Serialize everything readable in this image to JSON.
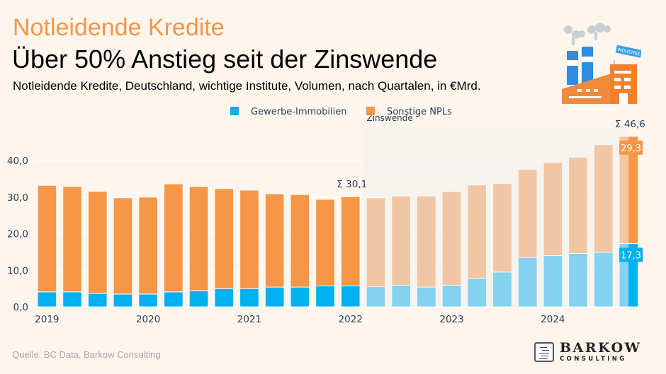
{
  "header": {
    "kicker": "Notleidende Kredite",
    "headline": "Über 50% Anstieg seit der Zinswende",
    "subtitle": "Notleidende Kredite, Deutschland, wichtige Institute, Volumen, nach Quartalen, in €Mrd."
  },
  "illustration": {
    "icon": "factory-icon",
    "sign_text": "INDUSTRIE"
  },
  "footer": {
    "source": "Quelle: BC Data, Barkow Consulting",
    "logo_main": "BARKOW",
    "logo_sub": "CONSULTING"
  },
  "colors": {
    "background": "#fef5ec",
    "gewerbe": "#00b0f0",
    "sonstige": "#f79646",
    "shade": "#efefef",
    "kicker": "#f79646",
    "axis_text": "#2a3f5f"
  },
  "chart_data": {
    "type": "bar",
    "stacked": true,
    "title": "Notleidende Kredite, Deutschland, wichtige Institute, Volumen, nach Quartalen, in €Mrd.",
    "xlabel": "",
    "ylabel": "",
    "ylim": [
      0,
      48
    ],
    "yticks": [
      0,
      10,
      20,
      30,
      40
    ],
    "ytick_labels": [
      "0,0",
      "10,0",
      "20,0",
      "30,0",
      "40,0"
    ],
    "grid": true,
    "legend_position": "top-center",
    "categories": [
      "2019 Q1",
      "2019 Q2",
      "2019 Q3",
      "2019 Q4",
      "2020 Q1",
      "2020 Q2",
      "2020 Q3",
      "2020 Q4",
      "2021 Q1",
      "2021 Q2",
      "2021 Q3",
      "2021 Q4",
      "2022 Q1",
      "2022 Q2",
      "2022 Q3",
      "2022 Q4",
      "2023 Q1",
      "2023 Q2",
      "2023 Q3",
      "2023 Q4",
      "2024 Q1",
      "2024 Q2",
      "2024 Q3",
      "2024 Q4"
    ],
    "xtick_labels": [
      {
        "index": 0,
        "label": "2019"
      },
      {
        "index": 4,
        "label": "2020"
      },
      {
        "index": 8,
        "label": "2021"
      },
      {
        "index": 12,
        "label": "2022"
      },
      {
        "index": 16,
        "label": "2023"
      },
      {
        "index": 20,
        "label": "2024"
      }
    ],
    "series": [
      {
        "name": "Gewerbe-Immobilien",
        "color": "#00b0f0",
        "values": [
          4.1,
          4.1,
          3.7,
          3.5,
          3.5,
          4.1,
          4.4,
          5.0,
          5.0,
          5.4,
          5.4,
          5.7,
          5.7,
          5.5,
          5.9,
          5.4,
          5.9,
          7.8,
          9.5,
          13.5,
          14.0,
          14.6,
          14.9,
          17.3
        ]
      },
      {
        "name": "Sonstige NPLs",
        "color": "#f79646",
        "values": [
          29.1,
          28.8,
          27.9,
          26.3,
          26.5,
          29.5,
          28.5,
          27.3,
          26.9,
          25.5,
          25.3,
          23.7,
          24.4,
          24.3,
          24.4,
          24.9,
          25.6,
          25.5,
          24.2,
          24.1,
          25.4,
          26.3,
          29.4,
          29.3
        ]
      }
    ],
    "annotations": [
      {
        "index": 12,
        "text": "Σ 30,1",
        "kind": "total"
      },
      {
        "index": 23,
        "text": "Σ 46,6",
        "kind": "total"
      },
      {
        "index": 23,
        "series": 1,
        "text": "29,3",
        "kind": "value"
      },
      {
        "index": 23,
        "series": 0,
        "text": "17,3",
        "kind": "value"
      }
    ],
    "shaded_region": {
      "label": "Zinswende",
      "from_index": 13,
      "to_index": 23
    }
  }
}
